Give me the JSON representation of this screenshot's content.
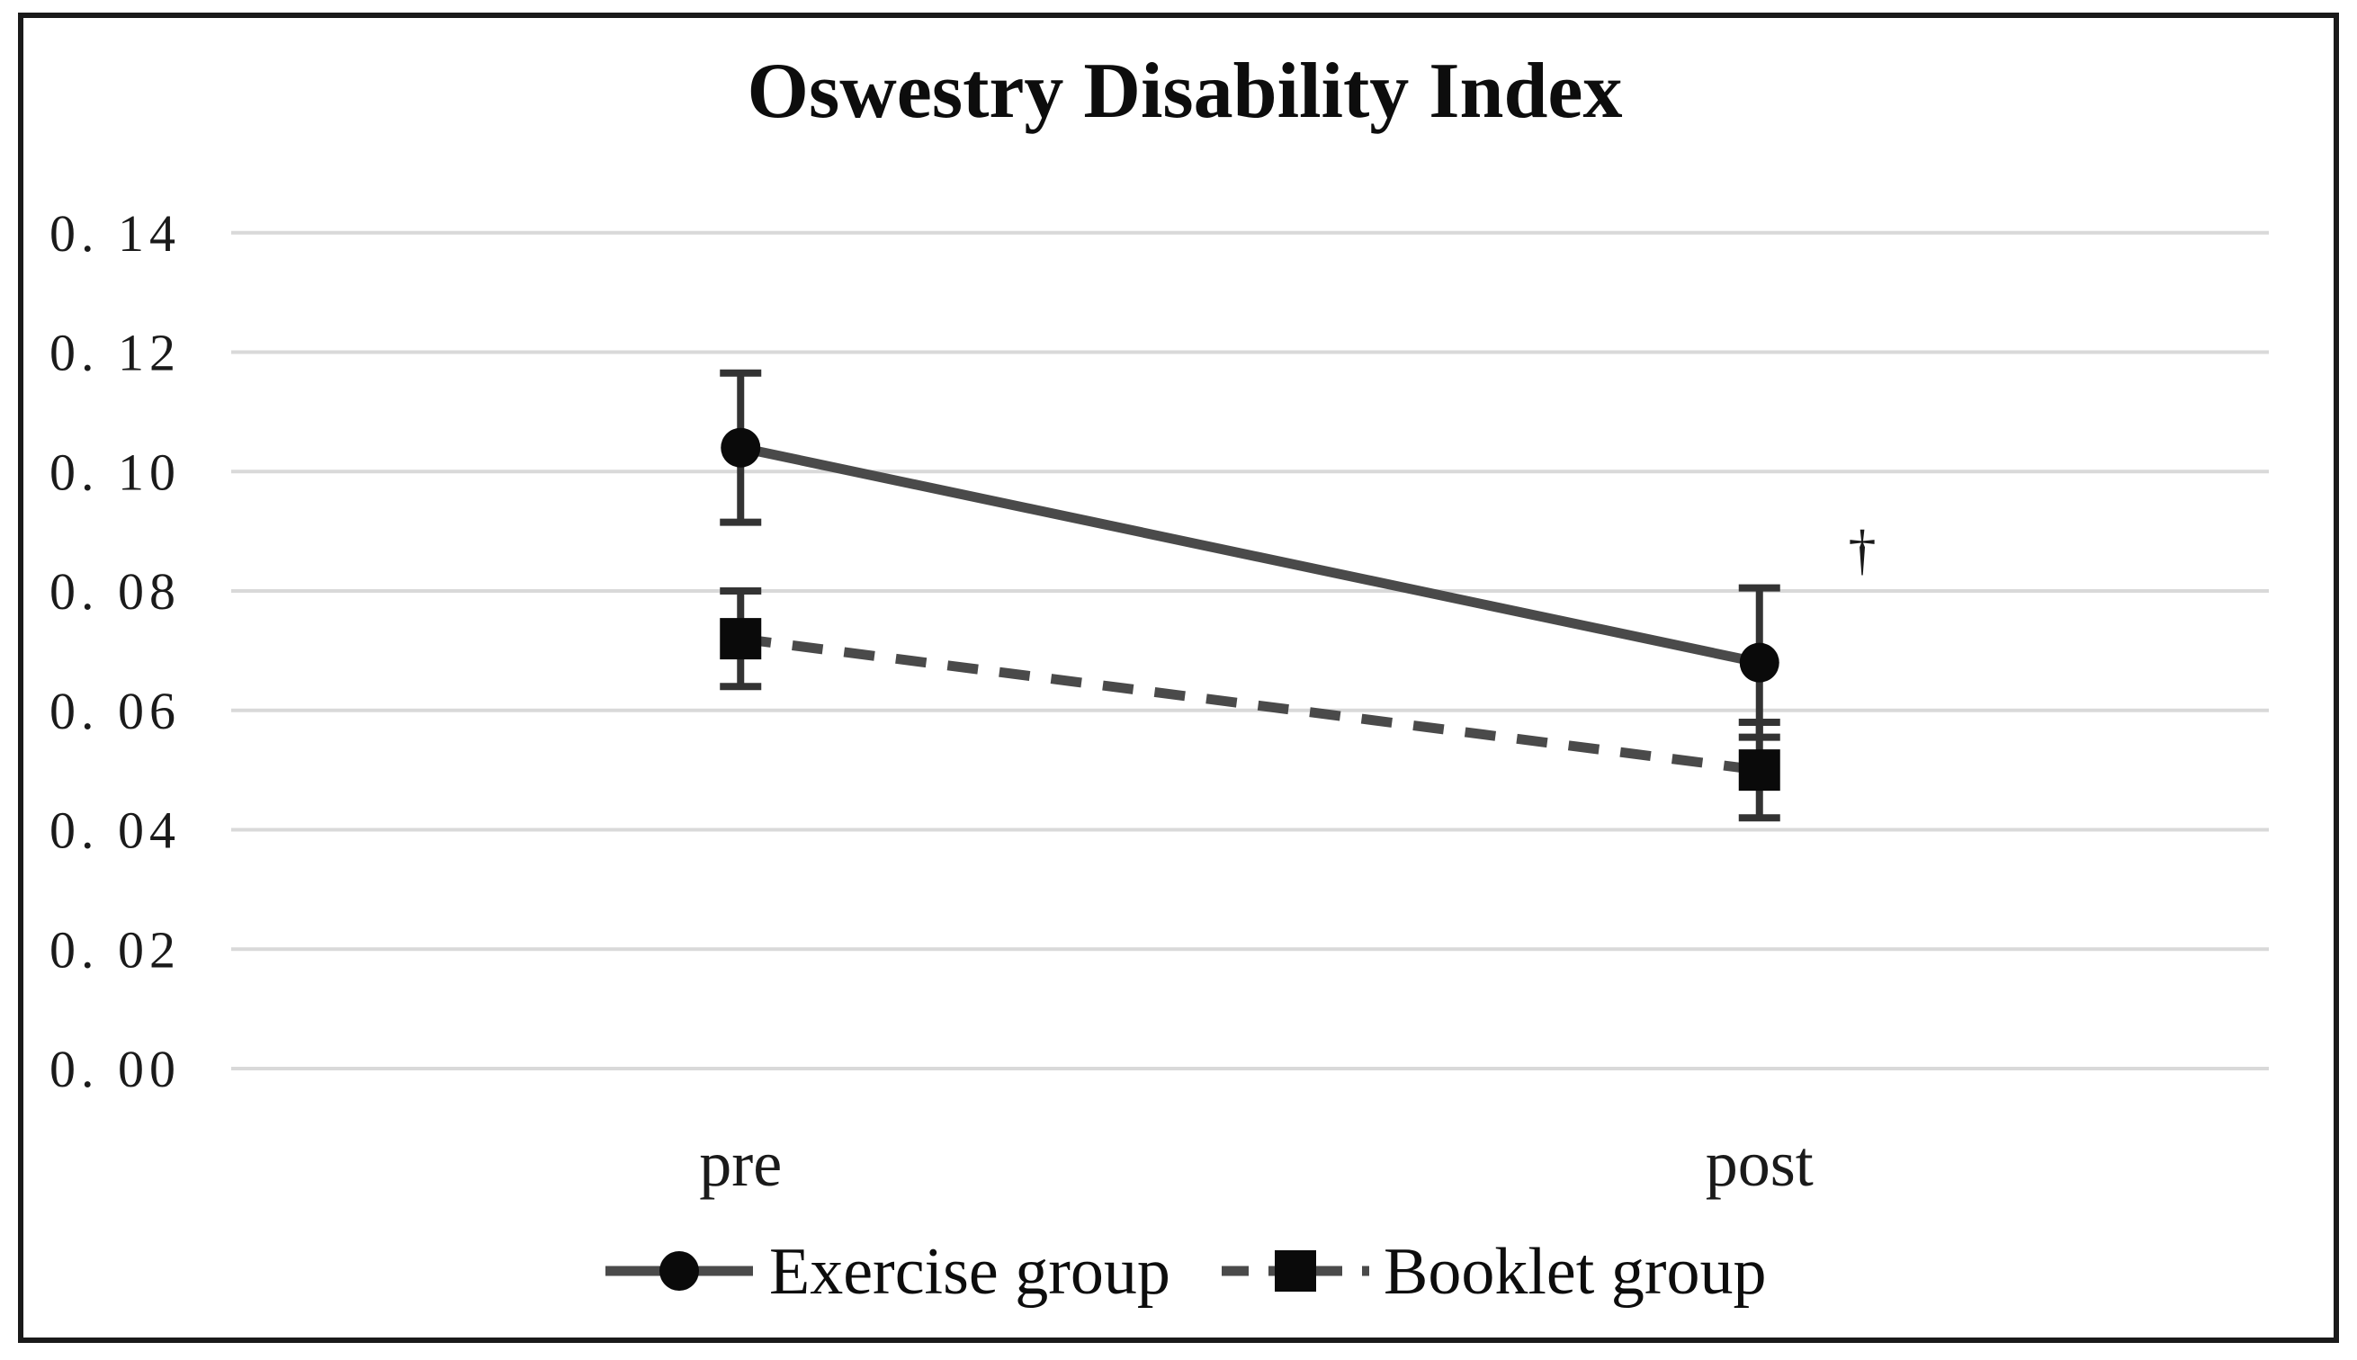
{
  "chart_data": {
    "type": "line",
    "title": "Oswestry Disability Index",
    "categories": [
      "pre",
      "post"
    ],
    "series": [
      {
        "name": "Exercise group",
        "marker": "circle",
        "line_style": "solid",
        "values": [
          0.104,
          0.068
        ],
        "error": [
          0.0125,
          0.0125
        ]
      },
      {
        "name": "Booklet group",
        "marker": "square",
        "line_style": "dashed",
        "values": [
          0.072,
          0.05
        ],
        "error": [
          0.008,
          0.008
        ]
      }
    ],
    "ylim": [
      0.0,
      0.14
    ],
    "ytick_step": 0.02,
    "ytick_labels": [
      "0. 00",
      "0. 02",
      "0. 04",
      "0. 06",
      "0. 08",
      "0. 10",
      "0. 12",
      "0. 14"
    ],
    "xlabel": "",
    "ylabel": "",
    "grid": "horizontal",
    "legend_position": "bottom-center",
    "annotations": [
      {
        "text": "†",
        "category": "post",
        "y": 0.087
      }
    ],
    "colors": {
      "line": "#4a4a4a",
      "marker": "#0a0a0a",
      "gridline": "#d9d9d9",
      "error_bar": "#333333",
      "text": "#1a1a1a",
      "frame": "#1a1a1a",
      "background": "#ffffff"
    }
  }
}
